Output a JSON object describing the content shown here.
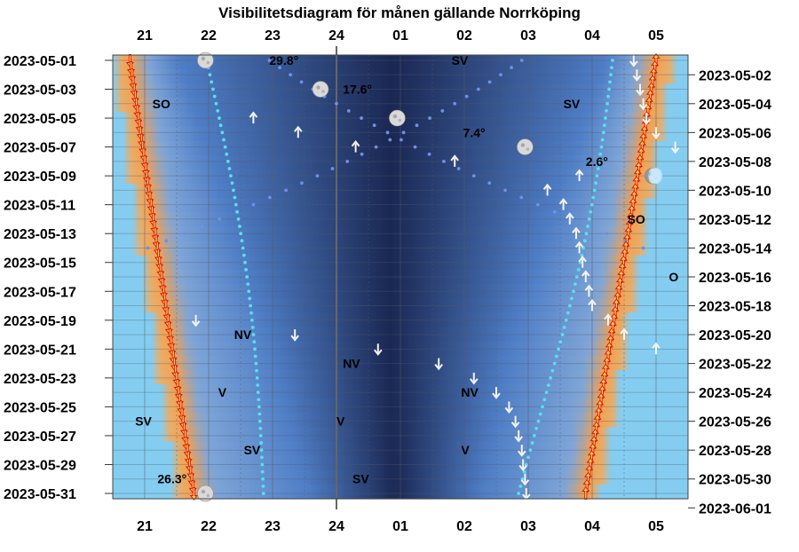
{
  "chart_data": {
    "type": "heatmap",
    "title": "Visibilitetsdiagram för månen gällande Norrköping",
    "hour_labels": [
      "21",
      "22",
      "23",
      "24",
      "01",
      "02",
      "03",
      "04",
      "05"
    ],
    "dates_left": [
      "2023-05-01",
      "2023-05-03",
      "2023-05-05",
      "2023-05-07",
      "2023-05-09",
      "2023-05-11",
      "2023-05-13",
      "2023-05-15",
      "2023-05-17",
      "2023-05-19",
      "2023-05-21",
      "2023-05-23",
      "2023-05-25",
      "2023-05-27",
      "2023-05-29",
      "2023-05-31"
    ],
    "dates_right": [
      "2023-05-02",
      "2023-05-04",
      "2023-05-06",
      "2023-05-08",
      "2023-05-10",
      "2023-05-12",
      "2023-05-14",
      "2023-05-16",
      "2023-05-18",
      "2023-05-20",
      "2023-05-22",
      "2023-05-24",
      "2023-05-26",
      "2023-05-28",
      "2023-05-30",
      "2023-06-01"
    ],
    "sunset": [
      20.77,
      21.1,
      21.43,
      21.77
    ],
    "sunrise": [
      5.0,
      4.64,
      4.27,
      3.9
    ],
    "twilight_end": [
      21.53,
      22.25,
      22.97,
      23.55
    ],
    "twilight_start": [
      4.22,
      3.42,
      2.72,
      2.3
    ],
    "altitude_labels": [
      {
        "text": "29.8°",
        "day": 1,
        "hour": 22.95
      },
      {
        "text": "17.6°",
        "day": 3,
        "hour": 24.1
      },
      {
        "text": "7.4°",
        "day": 6,
        "hour": 25.98
      },
      {
        "text": "2.6°",
        "day": 8,
        "hour": 27.9
      },
      {
        "text": "26.3°",
        "day": 30,
        "hour": 21.2
      }
    ],
    "direction_labels": [
      {
        "text": "SV",
        "day": 1,
        "hour": 25.8
      },
      {
        "text": "SO",
        "day": 4,
        "hour": 21.12
      },
      {
        "text": "SV",
        "day": 4,
        "hour": 27.55
      },
      {
        "text": "SO",
        "day": 12,
        "hour": 28.55
      },
      {
        "text": "O",
        "day": 16,
        "hour": 29.2
      },
      {
        "text": "NV",
        "day": 20,
        "hour": 22.4
      },
      {
        "text": "NV",
        "day": 22,
        "hour": 24.1
      },
      {
        "text": "V",
        "day": 24,
        "hour": 22.15
      },
      {
        "text": "NV",
        "day": 24,
        "hour": 25.95
      },
      {
        "text": "SV",
        "day": 26,
        "hour": 20.85
      },
      {
        "text": "V",
        "day": 26,
        "hour": 24.0
      },
      {
        "text": "SV",
        "day": 28,
        "hour": 22.55
      },
      {
        "text": "V",
        "day": 28,
        "hour": 25.95
      },
      {
        "text": "SV",
        "day": 30,
        "hour": 24.25
      }
    ],
    "moon_phases": [
      {
        "day": 1,
        "hour": 21.95,
        "phase": "waxing_gibbous"
      },
      {
        "day": 3,
        "hour": 23.75,
        "phase": "waxing_gibbous"
      },
      {
        "day": 5,
        "hour": 24.95,
        "phase": "full"
      },
      {
        "day": 7,
        "hour": 26.95,
        "phase": "waning_gibbous"
      },
      {
        "day": 9,
        "hour": 28.95,
        "phase": "waning_crescent"
      },
      {
        "day": 31,
        "hour": 21.95,
        "phase": "waxing_gibbous"
      }
    ],
    "moonrise_arrows": [
      {
        "day": 5,
        "hour": 22.7
      },
      {
        "day": 6,
        "hour": 23.4
      },
      {
        "day": 7,
        "hour": 24.3
      },
      {
        "day": 8,
        "hour": 25.85
      },
      {
        "day": 9,
        "hour": 27.8
      },
      {
        "day": 10,
        "hour": 27.3
      },
      {
        "day": 11,
        "hour": 27.55
      },
      {
        "day": 12,
        "hour": 27.65
      },
      {
        "day": 13,
        "hour": 27.75
      },
      {
        "day": 14,
        "hour": 27.8
      },
      {
        "day": 15,
        "hour": 27.85
      },
      {
        "day": 16,
        "hour": 27.9
      },
      {
        "day": 17,
        "hour": 27.95
      },
      {
        "day": 18,
        "hour": 28.0
      },
      {
        "day": 19,
        "hour": 28.25
      },
      {
        "day": 20,
        "hour": 28.5
      },
      {
        "day": 21,
        "hour": 29.0
      }
    ],
    "moonset_arrows": [
      {
        "day": 1,
        "hour": 28.65
      },
      {
        "day": 2,
        "hour": 28.7
      },
      {
        "day": 3,
        "hour": 28.75
      },
      {
        "day": 4,
        "hour": 28.8
      },
      {
        "day": 5,
        "hour": 28.85
      },
      {
        "day": 6,
        "hour": 29.0
      },
      {
        "day": 7,
        "hour": 29.3
      },
      {
        "day": 19,
        "hour": 21.8
      },
      {
        "day": 20,
        "hour": 23.35
      },
      {
        "day": 21,
        "hour": 24.65
      },
      {
        "day": 22,
        "hour": 25.6
      },
      {
        "day": 23,
        "hour": 26.15
      },
      {
        "day": 24,
        "hour": 26.5
      },
      {
        "day": 25,
        "hour": 26.7
      },
      {
        "day": 26,
        "hour": 26.8
      },
      {
        "day": 27,
        "hour": 26.85
      },
      {
        "day": 28,
        "hour": 26.9
      },
      {
        "day": 29,
        "hour": 26.92
      },
      {
        "day": 30,
        "hour": 26.95
      },
      {
        "day": 31,
        "hour": 26.97
      }
    ]
  }
}
